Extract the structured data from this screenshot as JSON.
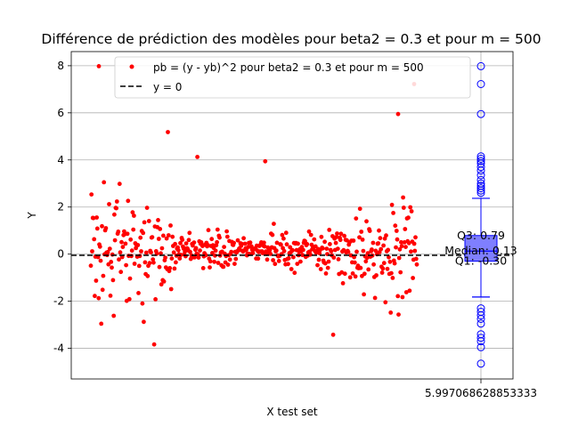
{
  "chart_data": {
    "type": "scatter",
    "title": "Différence de prédiction des modèles pour beta2 = 0.3 et pour m = 500",
    "xlabel": "X test set",
    "ylabel": "Y",
    "ylim": [
      -5.3,
      8.6
    ],
    "yticks": [
      -4,
      -2,
      0,
      2,
      4,
      6,
      8
    ],
    "xtick_label": "5.997068628853333",
    "grid": true,
    "legend": {
      "placement": "top-center",
      "entries": [
        {
          "label": "pb = (y - yb)^2 pour beta2 = 0.3 et pour m = 500",
          "color": "#ff0000",
          "marker": "point"
        },
        {
          "label": "y = 0",
          "color": "#000000",
          "marker": "dashed-line"
        }
      ]
    },
    "series": [
      {
        "name": "pb = (y - yb)^2 pour beta2 = 0.3 et pour m = 500",
        "color": "#ff0000",
        "n_points": 500,
        "x_range": [
          -1.2,
          1.2
        ],
        "generator": "noisy residuals: amplitude grows at both ends of the test set, narrower band in the middle, few outliers"
      }
    ],
    "reference_line": {
      "y": 0,
      "label": "y = 0",
      "style": "dashed",
      "color": "#000000"
    },
    "boxplot": {
      "color": "#0000ff",
      "fill": "#7f7fff",
      "q1": -0.3,
      "median": 0.13,
      "q3": 0.79,
      "whisker_low": -1.82,
      "whisker_high": 2.37,
      "outliers": [
        7.98,
        7.22,
        5.95,
        4.15,
        4.05,
        3.95,
        3.85,
        3.7,
        3.55,
        3.35,
        3.15,
        3.0,
        2.9,
        2.8,
        2.7,
        2.6,
        -2.3,
        -2.45,
        -2.6,
        -2.75,
        -2.95,
        -3.4,
        -3.55,
        -3.7,
        -3.95,
        -4.65
      ],
      "labels": {
        "q3": "Q3: 0.79",
        "median": "Median: 0.13",
        "q1": "Q1: -0.30"
      }
    }
  }
}
